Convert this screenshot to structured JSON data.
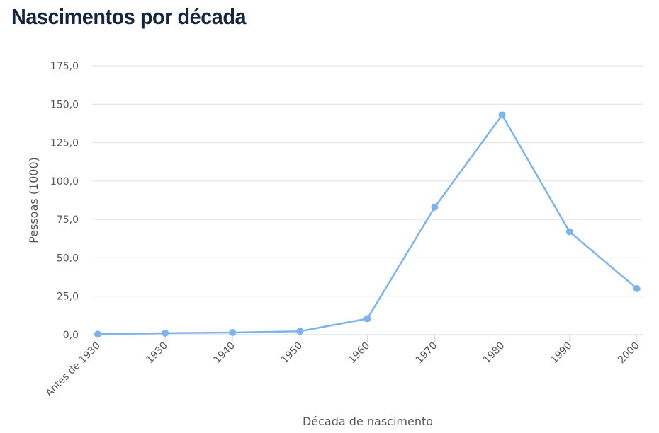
{
  "title": "Nascimentos por década",
  "chart_data": {
    "type": "line",
    "title": "Nascimentos por década",
    "xlabel": "Década de nascimento",
    "ylabel": "Pessoas (1000)",
    "categories": [
      "Antes de 1930",
      "1930",
      "1940",
      "1950",
      "1960",
      "1970",
      "1980",
      "1990",
      "2000"
    ],
    "series": [
      {
        "values": [
          0.3,
          1.0,
          1.4,
          2.2,
          10.4,
          83,
          143,
          67,
          30
        ]
      }
    ],
    "ylim": [
      0,
      175
    ],
    "yticks": [
      0,
      25,
      50,
      75,
      100,
      125,
      150,
      175
    ],
    "ytick_labels": [
      "0,0",
      "25,0",
      "50,0",
      "75,0",
      "100,0",
      "125,0",
      "150,0",
      "175,0"
    ],
    "grid": "horizontal",
    "legend": "none",
    "colors": {
      "line": "#7cb5ec",
      "grid": "#e0e0e0",
      "axis": "#ccd6eb",
      "title": "#14253d"
    }
  }
}
